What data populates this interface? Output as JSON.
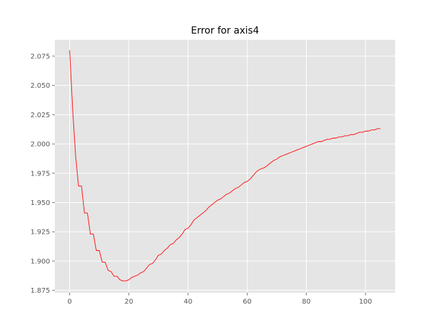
{
  "chart_data": {
    "type": "line",
    "title": "Error for axis4",
    "xlabel": "",
    "ylabel": "",
    "xlim": [
      -5,
      110
    ],
    "ylim": [
      1.873,
      2.089
    ],
    "xticks": [
      0,
      20,
      40,
      60,
      80,
      100
    ],
    "yticks": [
      1.875,
      1.9,
      1.925,
      1.95,
      1.975,
      2.0,
      2.025,
      2.05,
      2.075
    ],
    "ytick_labels": [
      "1.875",
      "1.900",
      "1.925",
      "1.950",
      "1.975",
      "2.000",
      "2.025",
      "2.050",
      "2.075"
    ],
    "xtick_labels": [
      "0",
      "20",
      "40",
      "60",
      "80",
      "100"
    ],
    "grid": true,
    "background": "#e5e5e5",
    "grid_color": "#ffffff",
    "series": [
      {
        "color": "#ff0000",
        "x": [
          0,
          1,
          2,
          3,
          4,
          5,
          6,
          7,
          8,
          9,
          10,
          11,
          12,
          13,
          14,
          15,
          16,
          17,
          18,
          19,
          20,
          21,
          22,
          23,
          24,
          25,
          26,
          27,
          28,
          29,
          30,
          31,
          32,
          33,
          34,
          35,
          36,
          37,
          38,
          39,
          40,
          41,
          42,
          43,
          44,
          45,
          46,
          47,
          48,
          49,
          50,
          51,
          52,
          53,
          54,
          55,
          56,
          57,
          58,
          59,
          60,
          61,
          62,
          63,
          64,
          65,
          66,
          67,
          68,
          69,
          70,
          71,
          72,
          73,
          74,
          75,
          76,
          77,
          78,
          79,
          80,
          81,
          82,
          83,
          84,
          85,
          86,
          87,
          88,
          89,
          90,
          91,
          92,
          93,
          94,
          95,
          96,
          97,
          98,
          99,
          100,
          101,
          102,
          103,
          104,
          105
        ],
        "values": [
          2.08,
          2.03,
          1.99,
          1.964,
          1.964,
          1.941,
          1.941,
          1.923,
          1.923,
          1.909,
          1.909,
          1.899,
          1.899,
          1.892,
          1.891,
          1.887,
          1.887,
          1.884,
          1.883,
          1.883,
          1.884,
          1.886,
          1.887,
          1.888,
          1.89,
          1.891,
          1.894,
          1.897,
          1.898,
          1.901,
          1.905,
          1.906,
          1.909,
          1.911,
          1.914,
          1.915,
          1.918,
          1.92,
          1.923,
          1.927,
          1.928,
          1.931,
          1.935,
          1.937,
          1.939,
          1.941,
          1.943,
          1.946,
          1.948,
          1.95,
          1.952,
          1.953,
          1.955,
          1.957,
          1.958,
          1.96,
          1.962,
          1.963,
          1.965,
          1.967,
          1.968,
          1.97,
          1.973,
          1.976,
          1.978,
          1.979,
          1.98,
          1.982,
          1.984,
          1.986,
          1.987,
          1.989,
          1.99,
          1.991,
          1.992,
          1.993,
          1.994,
          1.995,
          1.996,
          1.997,
          1.998,
          1.999,
          2.0,
          2.001,
          2.002,
          2.002,
          2.003,
          2.004,
          2.004,
          2.005,
          2.005,
          2.006,
          2.006,
          2.007,
          2.007,
          2.008,
          2.008,
          2.009,
          2.01,
          2.01,
          2.011,
          2.011,
          2.012,
          2.012,
          2.013,
          2.013
        ]
      }
    ]
  }
}
